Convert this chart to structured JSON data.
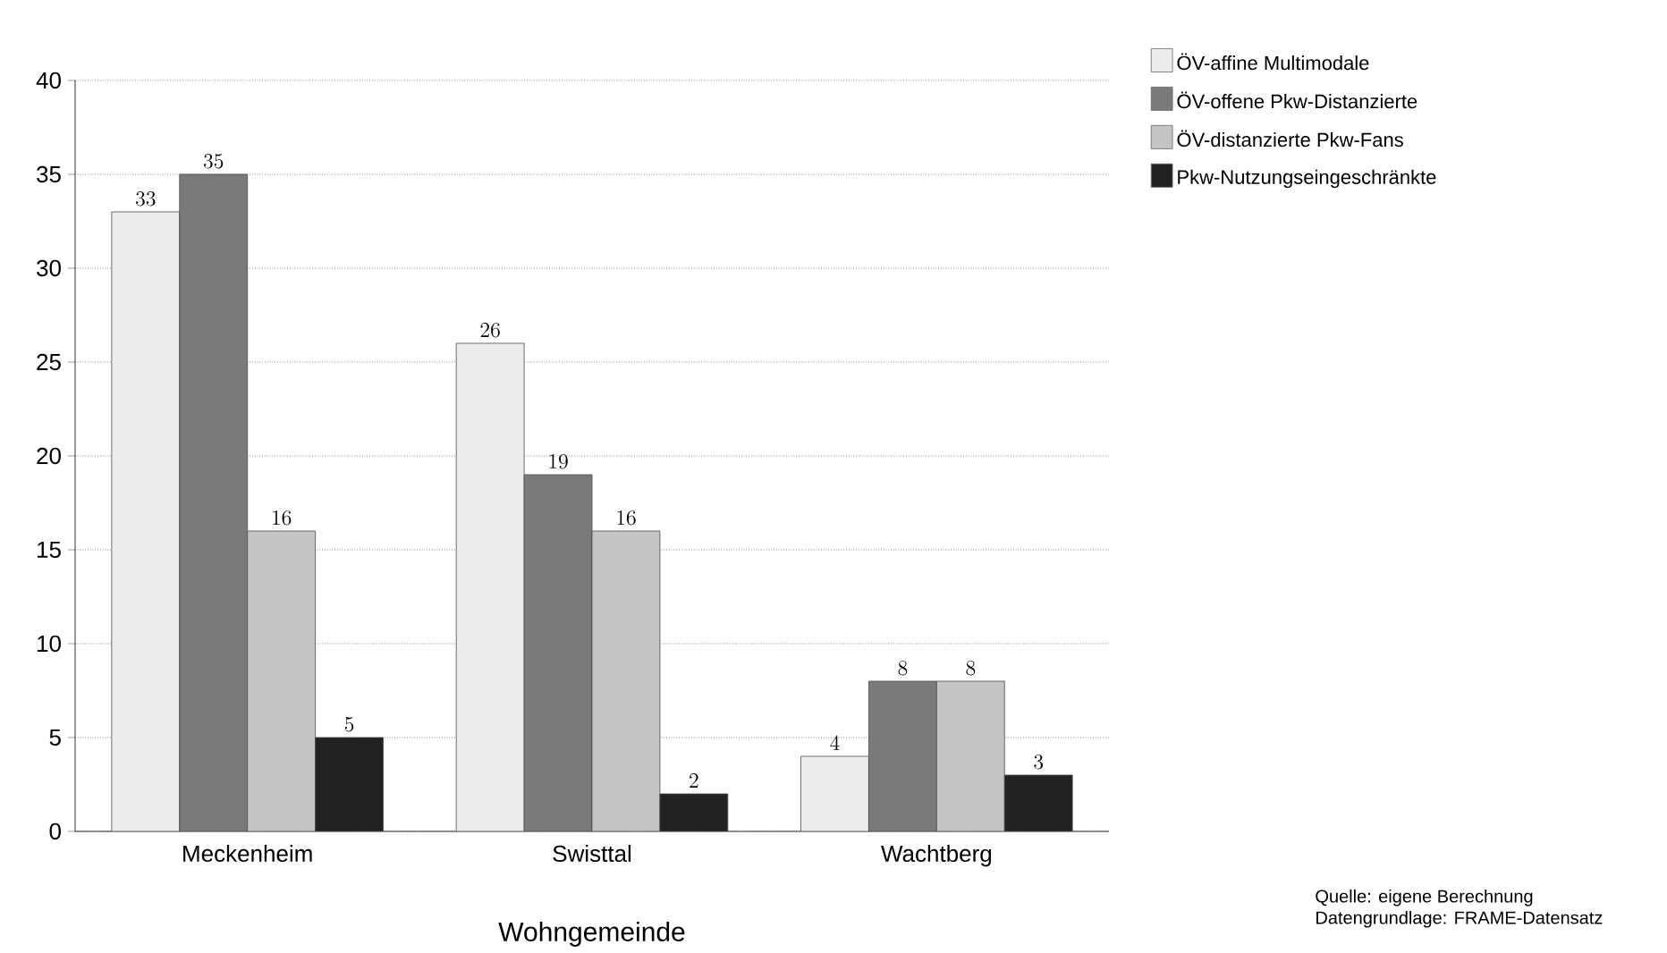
{
  "chart_data": {
    "type": "bar",
    "xlabel": "Wohngemeinde",
    "categories": [
      "Meckenheim",
      "Swisttal",
      "Wachtberg"
    ],
    "series": [
      {
        "name": "ÖV-affine Multimodale",
        "color": "#ececec",
        "values": [
          33,
          26,
          4
        ]
      },
      {
        "name": "ÖV-offene Pkw-Distanzierte",
        "color": "#7a7a7a",
        "values": [
          35,
          19,
          8
        ]
      },
      {
        "name": "ÖV-distanzierte Pkw-Fans",
        "color": "#c4c4c4",
        "values": [
          16,
          16,
          8
        ]
      },
      {
        "name": "Pkw-Nutzungseingeschränkte",
        "color": "#222222",
        "values": [
          5,
          2,
          3
        ]
      }
    ],
    "ylim": [
      0,
      40
    ],
    "yticks": [
      0,
      5,
      10,
      15,
      20,
      25,
      30,
      35,
      40
    ],
    "grid": "y",
    "legend": "top right",
    "data_labels": true,
    "annotations": [
      "Quelle: eigene Berechnung",
      "Datengrundlage: FRAME-Datensatz"
    ]
  }
}
